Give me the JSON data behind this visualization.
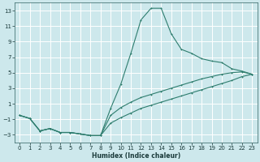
{
  "xlabel": "Humidex (Indice chaleur)",
  "background_color": "#cde8ec",
  "grid_color": "#ffffff",
  "line_color": "#2e7d6e",
  "x": [
    0,
    1,
    2,
    3,
    4,
    5,
    6,
    7,
    8,
    9,
    10,
    11,
    12,
    13,
    14,
    15,
    16,
    17,
    18,
    19,
    20,
    21,
    22,
    23
  ],
  "y_main": [
    -0.5,
    -0.9,
    -2.5,
    -2.2,
    -2.7,
    -2.7,
    -2.9,
    -3.1,
    -3.1,
    0.4,
    3.5,
    7.5,
    11.8,
    13.3,
    13.3,
    10.0,
    8.0,
    7.5,
    6.8,
    6.5,
    6.3,
    5.5,
    5.2,
    4.8
  ],
  "y_high": [
    -0.5,
    -0.9,
    -2.5,
    -2.2,
    -2.7,
    -2.7,
    -2.9,
    -3.1,
    -3.1,
    -0.5,
    0.5,
    1.2,
    1.8,
    2.2,
    2.6,
    3.0,
    3.4,
    3.8,
    4.2,
    4.5,
    4.8,
    5.0,
    5.1,
    4.8
  ],
  "y_low": [
    -0.5,
    -0.9,
    -2.5,
    -2.2,
    -2.7,
    -2.7,
    -2.9,
    -3.1,
    -3.1,
    -1.5,
    -0.8,
    -0.2,
    0.4,
    0.8,
    1.2,
    1.6,
    2.0,
    2.4,
    2.8,
    3.2,
    3.6,
    4.0,
    4.5,
    4.8
  ],
  "ylim": [
    -4,
    14
  ],
  "xlim": [
    -0.5,
    23.5
  ],
  "yticks": [
    -3,
    -1,
    1,
    3,
    5,
    7,
    9,
    11,
    13
  ],
  "xticks": [
    0,
    1,
    2,
    3,
    4,
    5,
    6,
    7,
    8,
    9,
    10,
    11,
    12,
    13,
    14,
    15,
    16,
    17,
    18,
    19,
    20,
    21,
    22,
    23
  ]
}
